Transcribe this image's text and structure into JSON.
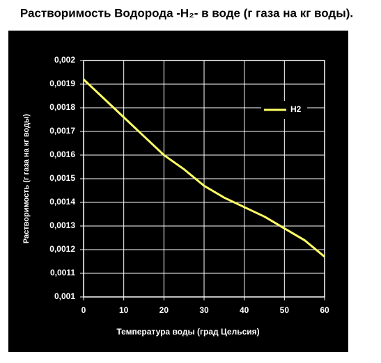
{
  "chart_data": {
    "type": "line",
    "title": "Растворимость Водорода -H₂- в воде (г газа на кг воды).",
    "x_label": "Температура воды (град Цельсия)",
    "y_label": "Растворимость (г газа на кг воды)",
    "x": [
      0,
      5,
      10,
      15,
      20,
      25,
      30,
      35,
      40,
      45,
      50,
      55,
      60
    ],
    "series": [
      {
        "name": "H2",
        "color": "#ffff66",
        "values": [
          0.00192,
          0.00184,
          0.00176,
          0.00168,
          0.0016,
          0.00154,
          0.00147,
          0.00142,
          0.00138,
          0.00134,
          0.00129,
          0.00124,
          0.00117
        ]
      }
    ],
    "xlim": [
      0,
      60
    ],
    "xticks": [
      0,
      10,
      20,
      30,
      40,
      50,
      60
    ],
    "ylim": [
      0.001,
      0.002
    ],
    "yticks": [
      {
        "value": 0.001,
        "label": "0,001"
      },
      {
        "value": 0.0011,
        "label": "0,0011"
      },
      {
        "value": 0.0012,
        "label": "0,0012"
      },
      {
        "value": 0.0013,
        "label": "0,0013"
      },
      {
        "value": 0.0014,
        "label": "0,0014"
      },
      {
        "value": 0.0015,
        "label": "0,0015"
      },
      {
        "value": 0.0016,
        "label": "0,0016"
      },
      {
        "value": 0.0017,
        "label": "0,0017"
      },
      {
        "value": 0.0018,
        "label": "0,0018"
      },
      {
        "value": 0.0019,
        "label": "0,0019"
      },
      {
        "value": 0.002,
        "label": "0,002"
      }
    ],
    "grid": true,
    "legend": "upper right"
  }
}
